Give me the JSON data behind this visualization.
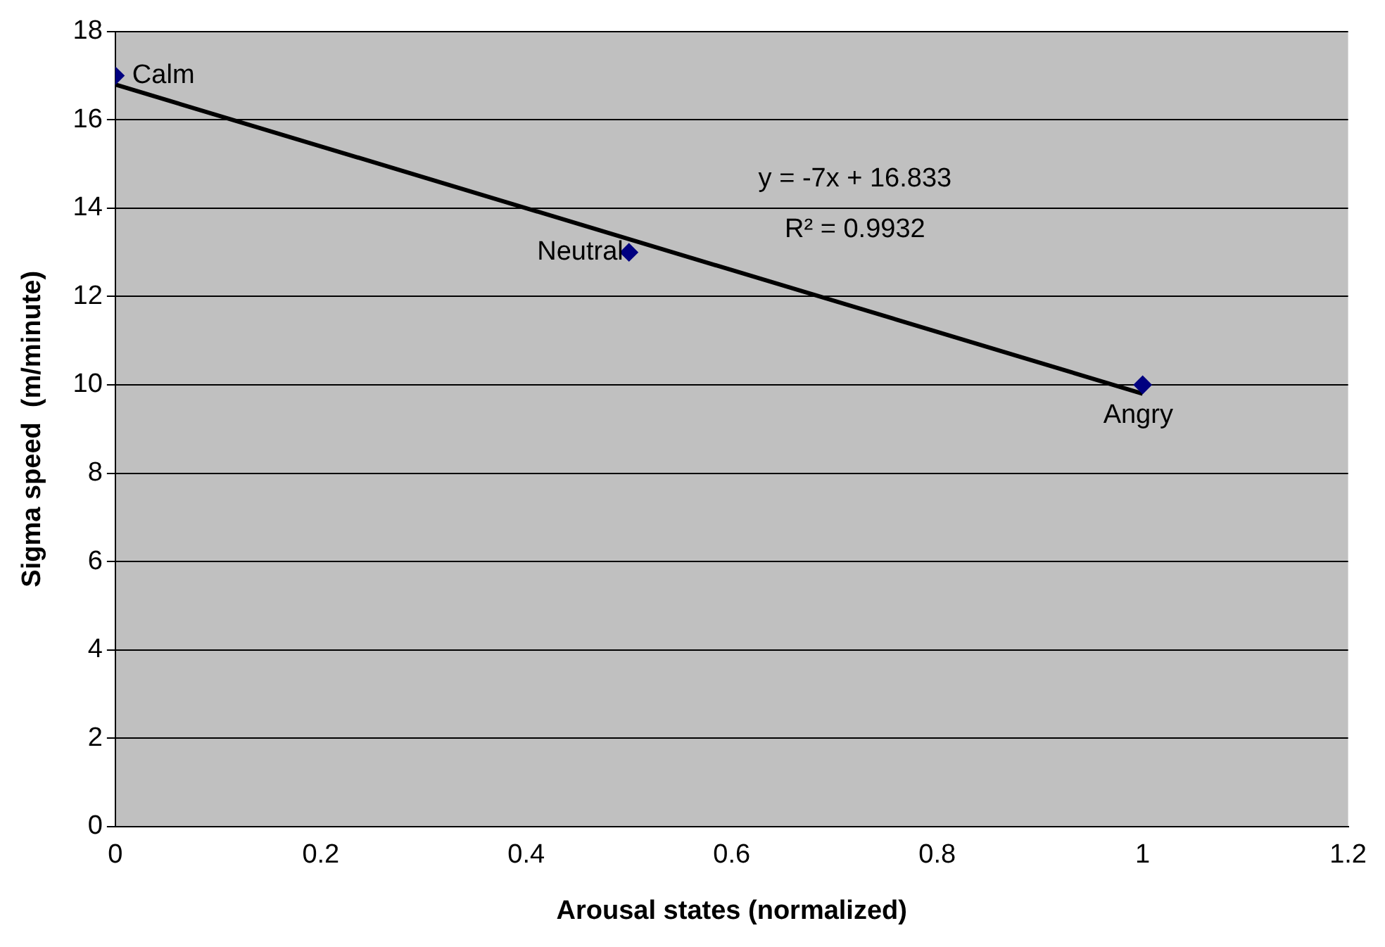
{
  "chart_data": {
    "type": "scatter",
    "xlabel": "Arousal states (normalized)",
    "ylabel": "Sigma speed  (m/minute)",
    "xlim": [
      0,
      1.2
    ],
    "xticks": [
      0,
      0.2,
      0.4,
      0.6,
      0.8,
      1,
      1.2
    ],
    "ylim": [
      0,
      18
    ],
    "yticks": [
      0,
      2,
      4,
      6,
      8,
      10,
      12,
      14,
      16,
      18
    ],
    "grid": "y",
    "legend": false,
    "series": [
      {
        "type": "scatter",
        "color": "#000080",
        "marker": "diamond",
        "x": [
          0,
          0.5,
          1
        ],
        "values": [
          17,
          13,
          10
        ]
      },
      {
        "type": "line",
        "color": "#000000",
        "marker": "none",
        "line_style": "solid",
        "x": [
          0,
          1
        ],
        "values": [
          16.8,
          9.8
        ]
      }
    ],
    "annotations": [
      {
        "text": "Calm",
        "x": 0,
        "y": 17
      },
      {
        "text": "Neutral",
        "x": 0.5,
        "y": 13
      },
      {
        "text": "Angry",
        "x": 1,
        "y": 10
      },
      "y = -7x + 16.833",
      "R² = 0.9932"
    ]
  }
}
